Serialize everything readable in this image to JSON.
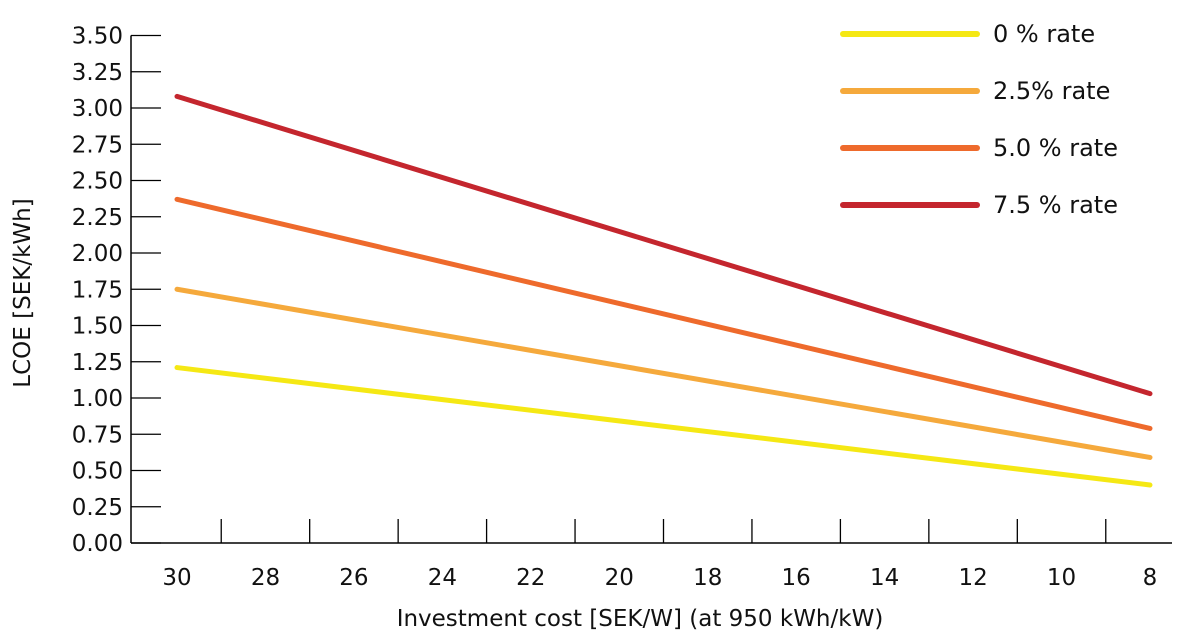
{
  "chart_data": {
    "type": "line",
    "xlabel": "Investment cost [SEK/W] (at 950 kWh/kW)",
    "ylabel": "LCOE [SEK/kWh]",
    "x_ticks": [
      30,
      28,
      26,
      24,
      22,
      20,
      18,
      16,
      14,
      12,
      10,
      8
    ],
    "y_ticks": [
      "0.00",
      "0.25",
      "0.50",
      "0.75",
      "1.00",
      "1.25",
      "1.50",
      "1.75",
      "2.00",
      "2.25",
      "2.50",
      "2.75",
      "3.00",
      "3.25",
      "3.50"
    ],
    "xlim": [
      30,
      8
    ],
    "ylim": [
      0,
      3.5
    ],
    "x_reversed": true,
    "grid": false,
    "legend_position": "top-right",
    "x": [
      30,
      8
    ],
    "series": [
      {
        "name": "0 % rate",
        "color": "#f5e814",
        "values": [
          1.21,
          0.4
        ]
      },
      {
        "name": "2.5% rate",
        "color": "#f5a93c",
        "values": [
          1.75,
          0.59
        ]
      },
      {
        "name": "5.0 % rate",
        "color": "#ee6a2c",
        "values": [
          2.37,
          0.79
        ]
      },
      {
        "name": "7.5 % rate",
        "color": "#c4262e",
        "values": [
          3.08,
          1.03
        ]
      }
    ]
  }
}
